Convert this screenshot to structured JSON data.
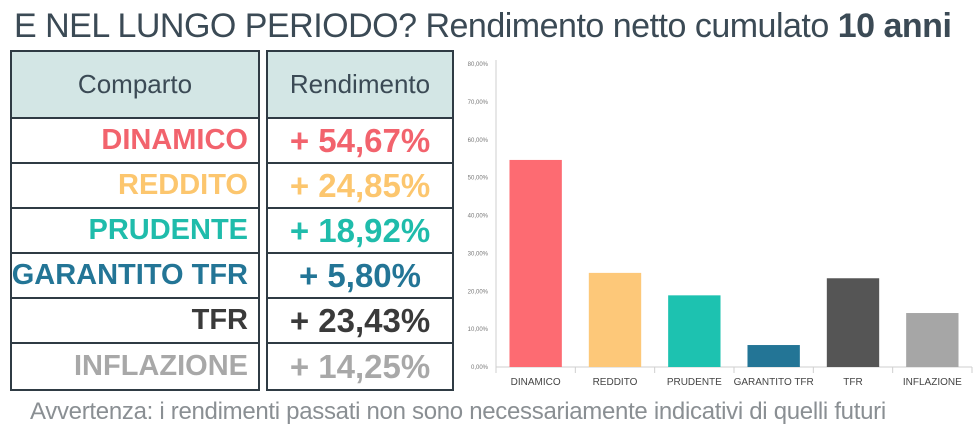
{
  "header": {
    "title_prefix": "E NEL LUNGO PERIODO?",
    "title_middle": "Rendimento netto cumulato",
    "title_bold": "10 anni"
  },
  "table": {
    "col1_header": "Comparto",
    "col2_header": "Rendimento",
    "rows": [
      {
        "name": "DINAMICO",
        "value": "+ 54,67%",
        "color": "#f2636d"
      },
      {
        "name": "REDDITO",
        "value": "+ 24,85%",
        "color": "#fcc66e"
      },
      {
        "name": "PRUDENTE",
        "value": "+ 18,92%",
        "color": "#1fbcab"
      },
      {
        "name": "GARANTITO TFR",
        "value": "+ 5,80%",
        "color": "#237596"
      },
      {
        "name": "TFR",
        "value": "+ 23,43%",
        "color": "#3a3a3a"
      },
      {
        "name": "INFLAZIONE",
        "value": "+ 14,25%",
        "color": "#a8a8a8"
      }
    ]
  },
  "footer": {
    "note": "Avvertenza: i rendimenti passati non sono necessariamente indicativi di quelli futuri"
  },
  "chart_data": {
    "type": "bar",
    "categories": [
      "DINAMICO",
      "REDDITO",
      "PRUDENTE",
      "GARANTITO TFR",
      "TFR",
      "INFLAZIONE"
    ],
    "values": [
      54.67,
      24.85,
      18.92,
      5.8,
      23.43,
      14.25
    ],
    "colors": [
      "#fd6b72",
      "#fdc879",
      "#1dc2b0",
      "#237596",
      "#555555",
      "#a6a6a6"
    ],
    "ylim": [
      0,
      80
    ],
    "yticks": [
      "0,00%",
      "10,00%",
      "20,00%",
      "30,00%",
      "40,00%",
      "50,00%",
      "60,00%",
      "70,00%",
      "80,00%"
    ],
    "grid": false,
    "title": "",
    "xlabel": "",
    "ylabel": ""
  }
}
